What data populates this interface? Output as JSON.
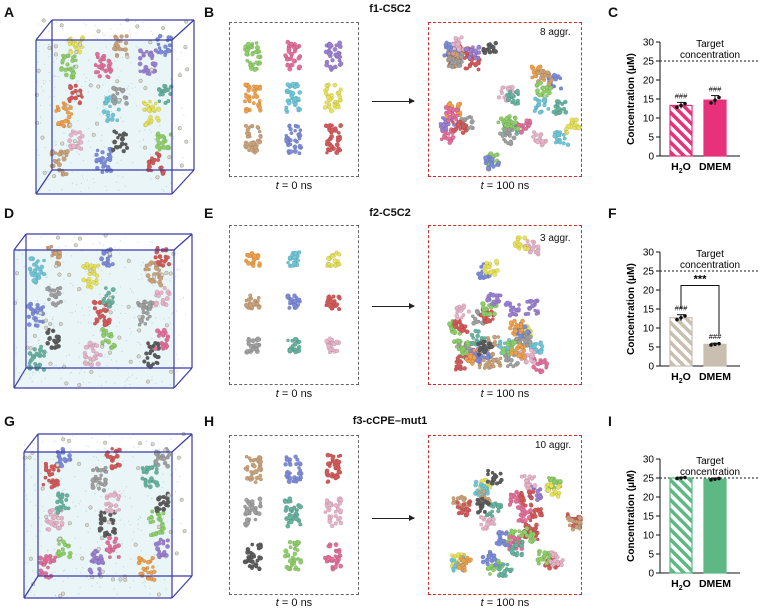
{
  "panels": {
    "A": "A",
    "B": "B",
    "C": "C",
    "D": "D",
    "E": "E",
    "F": "F",
    "G": "G",
    "H": "H",
    "I": "I"
  },
  "rows": [
    {
      "title": "f1-C5C2",
      "t0": "t = 0 ns",
      "t100": "t = 100 ns",
      "aggr": "8 aggr."
    },
    {
      "title": "f2-C5C2",
      "t0": "t = 0 ns",
      "t100": "t = 100 ns",
      "aggr": "3 aggr."
    },
    {
      "title": "f3-cCPE–mut1",
      "t0": "t = 0 ns",
      "t100": "t = 100 ns",
      "aggr": "10 aggr."
    }
  ],
  "colors": {
    "box_frame": "#3b3ba8",
    "water": "#cfe9ee",
    "f1_bar": "#e8317b",
    "f2_bar": "#c9beb0",
    "f3_bar": "#5db884",
    "dashed_black": "#666666",
    "dashed_red": "#c9302c"
  },
  "chart_data": [
    {
      "type": "bar",
      "panel": "C",
      "categories": [
        "H2O",
        "DMEM"
      ],
      "values": [
        13.3,
        14.7
      ],
      "errors": [
        0.8,
        1.2
      ],
      "ylabel": "Concentration (μM)",
      "ylim": [
        0,
        30
      ],
      "yticks": [
        0,
        5,
        10,
        15,
        20,
        25,
        30
      ],
      "target_value": 25,
      "target_label": [
        "Target",
        "concentration"
      ],
      "bar_annotations": [
        "###",
        "###"
      ],
      "hatched": [
        true,
        false
      ]
    },
    {
      "type": "bar",
      "panel": "F",
      "categories": [
        "H2O",
        "DMEM"
      ],
      "values": [
        12.7,
        5.7
      ],
      "errors": [
        0.8,
        0.3
      ],
      "ylabel": "Concentration (μM)",
      "ylim": [
        0,
        30
      ],
      "yticks": [
        0,
        5,
        10,
        15,
        20,
        25,
        30
      ],
      "target_value": 25,
      "target_label": [
        "Target",
        "concentration"
      ],
      "bar_annotations": [
        "###",
        "###"
      ],
      "significance": "***",
      "hatched": [
        true,
        false
      ]
    },
    {
      "type": "bar",
      "panel": "I",
      "categories": [
        "H2O",
        "DMEM"
      ],
      "values": [
        25.0,
        24.7
      ],
      "errors": [
        0.2,
        0.3
      ],
      "ylabel": "Concentration (μM)",
      "ylim": [
        0,
        30
      ],
      "yticks": [
        0,
        5,
        10,
        15,
        20,
        25,
        30
      ],
      "target_value": 25,
      "target_label": [
        "Target",
        "concentration"
      ],
      "bar_annotations": [
        "",
        ""
      ],
      "hatched": [
        true,
        false
      ]
    }
  ]
}
